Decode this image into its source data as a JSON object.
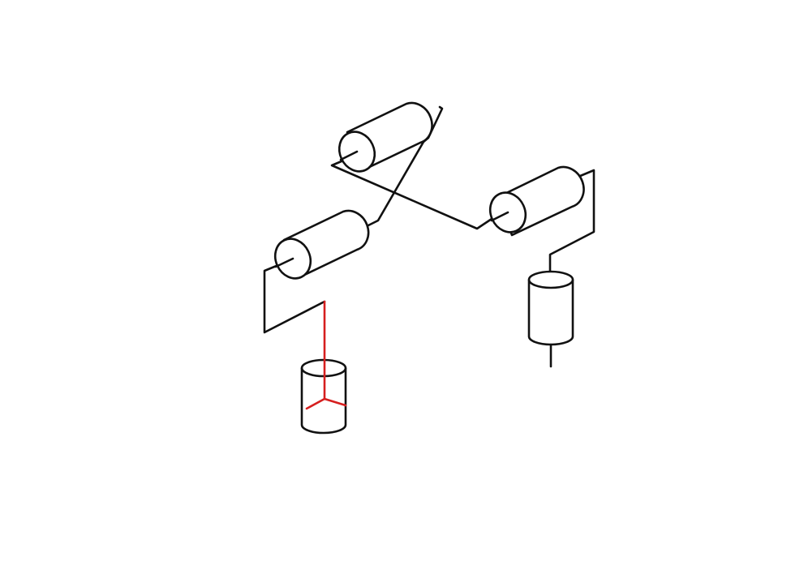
{
  "diagram": {
    "type": "robot-arm-kinematic-schematic",
    "colors": {
      "background": "#ffffff",
      "line": "#111111",
      "frame": "#d61f1f"
    },
    "components": [
      "base-prismatic-joint",
      "base-coordinate-frame",
      "lower-revolute-joint",
      "upper-revolute-joint",
      "wrist-revolute-joint",
      "end-effector-prismatic-joint"
    ]
  }
}
